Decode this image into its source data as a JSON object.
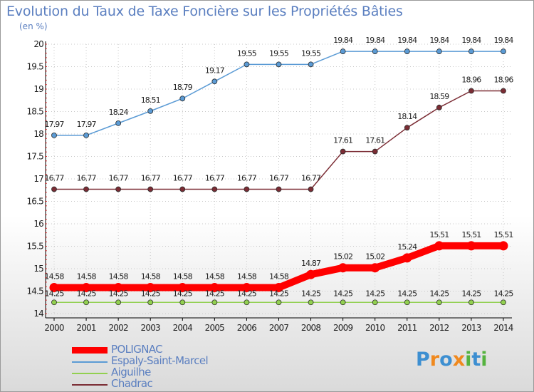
{
  "title": "Evolution du Taux de Taxe Foncière sur les Propriétés Bâties",
  "unit_label": "(en %)",
  "logo": {
    "letters": [
      "P",
      "r",
      "o",
      "x",
      "i",
      "t",
      "i"
    ],
    "colors": [
      "#3d8fd1",
      "#f0891e",
      "#3d8fd1",
      "#f0891e",
      "#55b33f",
      "#3d8fd1",
      "#55b33f"
    ]
  },
  "chart_data": {
    "type": "line",
    "title": "Evolution du Taux de Taxe Foncière sur les Propriétés Bâties",
    "ylabel": "(en %)",
    "xlabel": "",
    "ylim": [
      14,
      20
    ],
    "yticks": [
      "14",
      "14.5",
      "15",
      "15.5",
      "16",
      "16.5",
      "17",
      "17.5",
      "18",
      "18.5",
      "19",
      "19.5",
      "20"
    ],
    "grid": true,
    "legend_position": "bottom-left",
    "x": [
      "2000",
      "2001",
      "2002",
      "2003",
      "2004",
      "2005",
      "2006",
      "2007",
      "2008",
      "2009",
      "2010",
      "2011",
      "2012",
      "2013",
      "2014"
    ],
    "series": [
      {
        "name": "POLIGNAC",
        "color": "#ff0000",
        "bold": true,
        "values": [
          14.58,
          14.58,
          14.58,
          14.58,
          14.58,
          14.58,
          14.58,
          14.58,
          14.87,
          15.02,
          15.02,
          15.24,
          15.51,
          15.51,
          15.51
        ],
        "labels": [
          "14.58",
          "14.58",
          "14.58",
          "14.58",
          "14.58",
          "14.58",
          "14.58",
          "14.58",
          "14.87",
          "15.02",
          "15.02",
          "15.24",
          "15.51",
          "15.51",
          "15.51"
        ]
      },
      {
        "name": "Espaly-Saint-Marcel",
        "color": "#5b9bd5",
        "values": [
          17.97,
          17.97,
          18.24,
          18.51,
          18.79,
          19.17,
          19.55,
          19.55,
          19.55,
          19.84,
          19.84,
          19.84,
          19.84,
          19.84,
          19.84
        ],
        "labels": [
          "17.97",
          "17.97",
          "18.24",
          "18.51",
          "18.79",
          "19.17",
          "19.55",
          "19.55",
          "19.55",
          "19.84",
          "19.84",
          "19.84",
          "19.84",
          "19.84",
          "19.84"
        ]
      },
      {
        "name": "Aiguilhe",
        "color": "#92d050",
        "values": [
          14.25,
          14.25,
          14.25,
          14.25,
          14.25,
          14.25,
          14.25,
          14.25,
          14.25,
          14.25,
          14.25,
          14.25,
          14.25,
          14.25,
          14.25
        ],
        "labels": [
          "14.25",
          "14.25",
          "14.25",
          "14.25",
          "14.25",
          "14.25",
          "14.25",
          "14.25",
          "14.25",
          "14.25",
          "14.25",
          "14.25",
          "14.25",
          "14.25",
          "14.25"
        ]
      },
      {
        "name": "Chadrac",
        "color": "#7b2c34",
        "values": [
          16.77,
          16.77,
          16.77,
          16.77,
          16.77,
          16.77,
          16.77,
          16.77,
          16.77,
          17.61,
          17.61,
          18.14,
          18.59,
          18.96,
          18.96
        ],
        "labels": [
          "16.77",
          "16.77",
          "16.77",
          "16.77",
          "16.77",
          "16.77",
          "16.77",
          "16.77",
          "16.77",
          "17.61",
          "17.61",
          "18.14",
          "18.59",
          "18.96",
          "18.96"
        ]
      }
    ]
  }
}
